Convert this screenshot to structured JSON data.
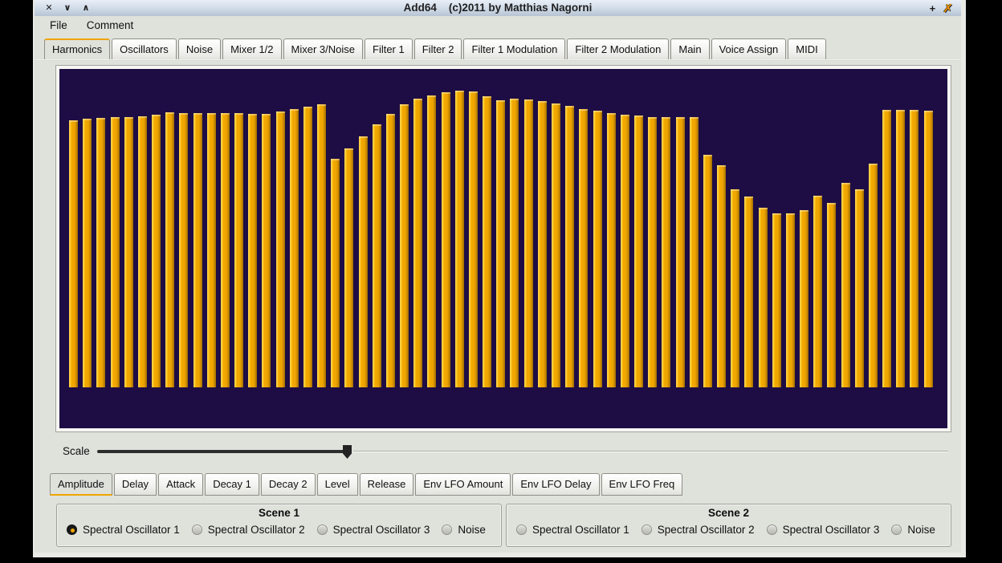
{
  "window": {
    "title": "Add64    (c)2011 by Matthias Nagorni",
    "controls": {
      "close": "✕",
      "shade": "∨",
      "raise": "∧",
      "plus": "+",
      "app_icon_glyph": "✗"
    }
  },
  "menubar": {
    "items": [
      "File",
      "Comment"
    ]
  },
  "main_tabs": {
    "active_index": 0,
    "items": [
      "Harmonics",
      "Oscillators",
      "Noise",
      "Mixer 1/2",
      "Mixer 3/Noise",
      "Filter 1",
      "Filter 2",
      "Filter 1 Modulation",
      "Filter 2 Modulation",
      "Main",
      "Voice Assign",
      "MIDI"
    ]
  },
  "chart_data": {
    "type": "bar",
    "title": "",
    "xlabel": "",
    "ylabel": "",
    "num_harmonics": 64,
    "x_range": [
      1,
      64
    ],
    "ylim": [
      0,
      1
    ],
    "grid": false,
    "legend": false,
    "bar_color": "#eda400",
    "background_color": "#1e0d45",
    "values": [
      0.845,
      0.85,
      0.853,
      0.855,
      0.855,
      0.858,
      0.863,
      0.87,
      0.868,
      0.868,
      0.868,
      0.868,
      0.868,
      0.866,
      0.866,
      0.873,
      0.881,
      0.888,
      0.896,
      0.723,
      0.756,
      0.794,
      0.832,
      0.866,
      0.896,
      0.914,
      0.924,
      0.934,
      0.939,
      0.937,
      0.921,
      0.909,
      0.914,
      0.911,
      0.906,
      0.898,
      0.891,
      0.881,
      0.876,
      0.868,
      0.863,
      0.86,
      0.855,
      0.855,
      0.855,
      0.855,
      0.736,
      0.703,
      0.627,
      0.604,
      0.569,
      0.551,
      0.551,
      0.561,
      0.607,
      0.584,
      0.647,
      0.627,
      0.708,
      0.878,
      0.878,
      0.878,
      0.876,
      0.0
    ]
  },
  "scale_slider": {
    "label": "Scale",
    "value_fraction": 0.293
  },
  "env_tabs": {
    "active_index": 0,
    "items": [
      "Amplitude",
      "Delay",
      "Attack",
      "Decay 1",
      "Decay 2",
      "Level",
      "Release",
      "Env LFO Amount",
      "Env LFO Delay",
      "Env LFO Freq"
    ]
  },
  "scenes": [
    {
      "title": "Scene 1",
      "selected_index": 0,
      "options": [
        "Spectral Oscillator 1",
        "Spectral Oscillator 2",
        "Spectral Oscillator 3",
        "Noise"
      ]
    },
    {
      "title": "Scene 2",
      "selected_index": -1,
      "options": [
        "Spectral Oscillator 1",
        "Spectral Oscillator 2",
        "Spectral Oscillator 3",
        "Noise"
      ]
    }
  ],
  "colors": {
    "accent_orange": "#eda500",
    "chart_background": "#1e0d45",
    "bar": "#eda400",
    "window_background": "#dfe1db"
  }
}
